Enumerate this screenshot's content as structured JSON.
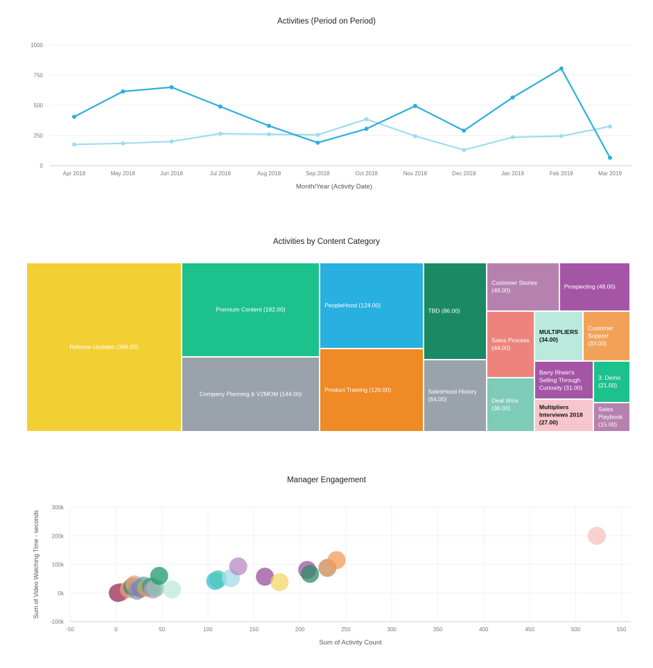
{
  "charts": {
    "line": {
      "title": "Activities (Period on Period)"
    },
    "treemap": {
      "title": "Activities by Content Category"
    },
    "bubble": {
      "title": "Manager Engagement"
    }
  },
  "colors": {
    "line_primary": "#2bafdb",
    "line_secondary": "#9ddcf0",
    "grid": "#eef1f3",
    "axis_text": "#777777"
  },
  "chart_data": [
    {
      "type": "line",
      "title": "Activities (Period on Period)",
      "xlabel": "Month/Year (Activity Date)",
      "ylabel": "",
      "categories": [
        "Apr 2018",
        "May 2018",
        "Jun 2018",
        "Jul 2018",
        "Aug 2018",
        "Sep 2018",
        "Oct 2018",
        "Nov 2018",
        "Dec 2018",
        "Jan 2019",
        "Feb 2019",
        "Mar 2019"
      ],
      "ylim": [
        0,
        1000
      ],
      "yticks": [
        "0",
        "250",
        "500",
        "750",
        "1000"
      ],
      "grid": true,
      "series": [
        {
          "values": [
            405,
            615,
            650,
            490,
            330,
            190,
            305,
            495,
            290,
            565,
            805,
            65
          ]
        },
        {
          "values": [
            175,
            185,
            200,
            265,
            260,
            255,
            385,
            245,
            130,
            235,
            245,
            325
          ]
        }
      ]
    },
    {
      "type": "treemap",
      "title": "Activities by Content Category",
      "items": [
        {
          "label": "Release Updates (366.00)",
          "value": 366,
          "color": "#f2d034",
          "text_color": "#ffffff"
        },
        {
          "label": "Premium Content (182.00)",
          "value": 182,
          "color": "#1dc18c",
          "text_color": "#ffffff"
        },
        {
          "label": "Company Planning & V2MOM (144.00)",
          "value": 144,
          "color": "#9aa2ab",
          "text_color": "#ffffff"
        },
        {
          "label": "PeopleHood (124.00)",
          "value": 124,
          "color": "#27b0e0",
          "text_color": "#ffffff"
        },
        {
          "label": "Product Training (120.00)",
          "value": 120,
          "color": "#ef8a25",
          "text_color": "#ffffff"
        },
        {
          "label": "TBD (86.00)",
          "value": 86,
          "color": "#198a63",
          "text_color": "#ffffff"
        },
        {
          "label": "SalesHood History (64.00)",
          "value": 64,
          "color": "#9aa2ab",
          "text_color": "#ffffff"
        },
        {
          "label": "Customer Stories (49.00)",
          "value": 49,
          "color": "#b681af",
          "text_color": "#ffffff"
        },
        {
          "label": "Prospecting (48.00)",
          "value": 48,
          "color": "#a455a6",
          "text_color": "#ffffff"
        },
        {
          "label": "Sales Process (44.00)",
          "value": 44,
          "color": "#ee837d",
          "text_color": "#ffffff"
        },
        {
          "label": "Deal Wins (36.00)",
          "value": 36,
          "color": "#7ecbb8",
          "text_color": "#ffffff"
        },
        {
          "label": "MULTIPLIERS (34.00)",
          "value": 34,
          "color": "#b9eadd",
          "text_color": "#111111"
        },
        {
          "label": "Customer Support (33.00)",
          "value": 33,
          "color": "#f2a258",
          "text_color": "#ffffff"
        },
        {
          "label": "Barry Rhein's Selling Through Curiosity (31.00)",
          "value": 31,
          "color": "#a455a6",
          "text_color": "#ffffff"
        },
        {
          "label": "Multipliers Interviews 2018 (27.00)",
          "value": 27,
          "color": "#f7c6cc",
          "text_color": "#111111"
        },
        {
          "label": "3. Demo (21.00)",
          "value": 21,
          "color": "#1dc18c",
          "text_color": "#ffffff"
        },
        {
          "label": "Sales Playbook (15.00)",
          "value": 15,
          "color": "#b681af",
          "text_color": "#ffffff"
        }
      ]
    },
    {
      "type": "scatter",
      "title": "Manager Engagement",
      "xlabel": "Sum of Activity Count",
      "ylabel": "Sum of Video Watching Time - seconds",
      "xlim": [
        -50,
        560
      ],
      "ylim": [
        -100000,
        300000
      ],
      "xticks": [
        "-50",
        "0",
        "50",
        "100",
        "150",
        "200",
        "250",
        "300",
        "350",
        "400",
        "450",
        "500",
        "550"
      ],
      "yticks": [
        "-100k",
        "0k",
        "100k",
        "200k",
        "300k"
      ],
      "grid": true,
      "points": [
        {
          "x": 2,
          "y": 0,
          "color": "#8e2d5e"
        },
        {
          "x": 5,
          "y": 3000,
          "color": "#b85c7a"
        },
        {
          "x": 14,
          "y": 13000,
          "color": "#e0a080"
        },
        {
          "x": 18,
          "y": 22000,
          "color": "#2a8a5a"
        },
        {
          "x": 20,
          "y": 30000,
          "color": "#f29d85"
        },
        {
          "x": 23,
          "y": 8000,
          "color": "#7a9aa8"
        },
        {
          "x": 27,
          "y": 16000,
          "color": "#9b6ab0"
        },
        {
          "x": 30,
          "y": 26000,
          "color": "#4ab1b8"
        },
        {
          "x": 33,
          "y": 18000,
          "color": "#d9a15a"
        },
        {
          "x": 38,
          "y": 22000,
          "color": "#2f9d8a"
        },
        {
          "x": 40,
          "y": 12000,
          "color": "#c48fc0"
        },
        {
          "x": 43,
          "y": 17000,
          "color": "#8cc5b0"
        },
        {
          "x": 47,
          "y": 60000,
          "color": "#1d9a6c"
        },
        {
          "x": 61,
          "y": 12000,
          "color": "#bde9de"
        },
        {
          "x": 108,
          "y": 42000,
          "color": "#3fbad8"
        },
        {
          "x": 111,
          "y": 48000,
          "color": "#4cc9b8"
        },
        {
          "x": 125,
          "y": 52000,
          "color": "#a3dbea"
        },
        {
          "x": 133,
          "y": 93000,
          "color": "#b98bc4"
        },
        {
          "x": 162,
          "y": 57000,
          "color": "#9a4e9a"
        },
        {
          "x": 178,
          "y": 38000,
          "color": "#f3d76a"
        },
        {
          "x": 208,
          "y": 81000,
          "color": "#a0569f"
        },
        {
          "x": 211,
          "y": 67000,
          "color": "#2d8b6a"
        },
        {
          "x": 230,
          "y": 88000,
          "color": "#c78a5a"
        },
        {
          "x": 240,
          "y": 115000,
          "color": "#f39a55"
        },
        {
          "x": 523,
          "y": 200000,
          "color": "#f5c2bd"
        }
      ]
    }
  ]
}
